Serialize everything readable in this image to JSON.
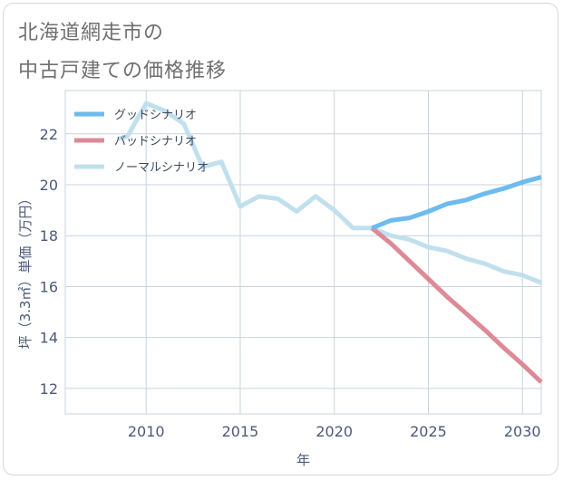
{
  "header": {
    "title_line1": "北海道網走市の",
    "title_line2": "中古戸建ての価格推移"
  },
  "chart_data": {
    "type": "line",
    "xlabel": "年",
    "ylabel": "坪（3.3㎡）単価（万円）",
    "xlim": [
      2005.7,
      2031
    ],
    "ylim": [
      11,
      23.7
    ],
    "x_ticks": [
      2010,
      2015,
      2020,
      2025,
      2030
    ],
    "y_ticks": [
      12,
      14,
      16,
      18,
      20,
      22
    ],
    "grid": true,
    "legend_position": "top-left",
    "series": [
      {
        "name": "グッドシナリオ",
        "color": "#6dbbef",
        "x": [
          2022,
          2023,
          2024,
          2025,
          2026,
          2027,
          2028,
          2029,
          2030,
          2031
        ],
        "y": [
          18.3,
          18.6,
          18.7,
          18.95,
          19.25,
          19.4,
          19.65,
          19.85,
          20.1,
          20.3
        ]
      },
      {
        "name": "バッドシナリオ",
        "color": "#dd8a96",
        "x": [
          2022,
          2023,
          2024,
          2025,
          2026,
          2027,
          2028,
          2029,
          2030,
          2031
        ],
        "y": [
          18.3,
          17.7,
          17.0,
          16.3,
          15.6,
          14.95,
          14.3,
          13.6,
          12.95,
          12.25
        ]
      },
      {
        "name": "ノーマルシナリオ",
        "color": "#c1e0ee",
        "x": [
          2008.5,
          2009,
          2010,
          2011,
          2012,
          2013,
          2014,
          2015,
          2016,
          2017,
          2018,
          2019,
          2020,
          2021,
          2022,
          2023,
          2024,
          2025,
          2026,
          2027,
          2028,
          2029,
          2030,
          2031
        ],
        "y": [
          21.8,
          21.9,
          23.2,
          22.9,
          22.4,
          20.7,
          20.9,
          19.15,
          19.55,
          19.45,
          18.95,
          19.55,
          19.0,
          18.3,
          18.3,
          18.0,
          17.85,
          17.55,
          17.4,
          17.1,
          16.9,
          16.6,
          16.45,
          16.15
        ]
      }
    ]
  }
}
